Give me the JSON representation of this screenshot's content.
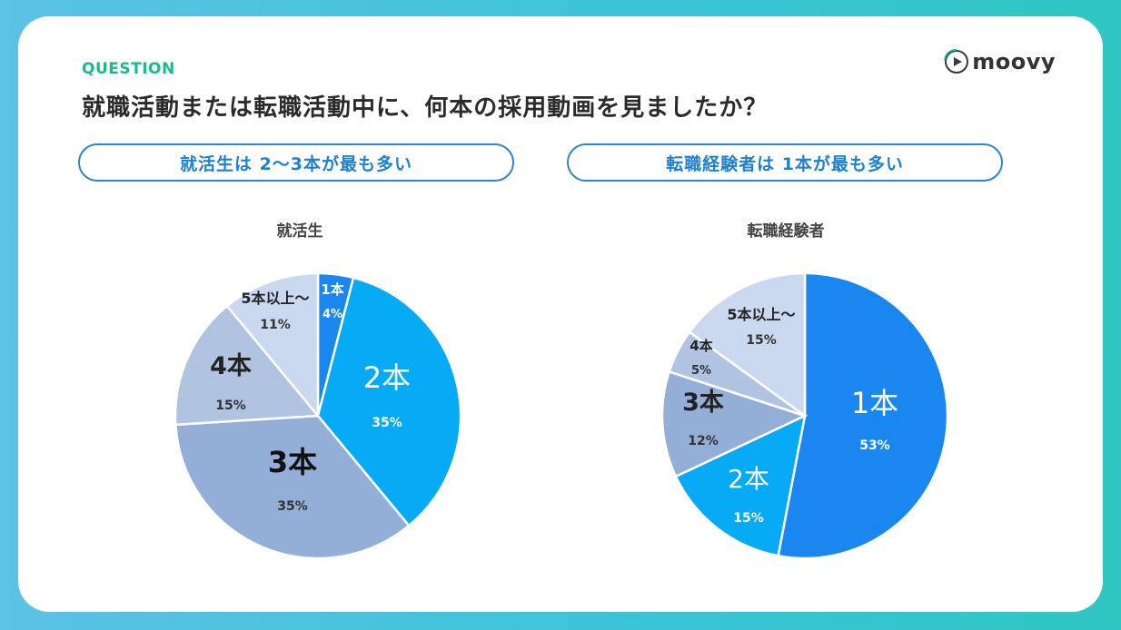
{
  "header": {
    "question_label": "QUESTION",
    "title": "就職活動または転職活動中に、何本の採用動画を見ましたか？",
    "logo_text": "moovy"
  },
  "pills": {
    "left": "就活生は 2〜3本が最も多い",
    "right": "転職経験者は 1本が最も多い"
  },
  "colors": {
    "slice_1": "#1a87f0",
    "slice_2": "#07aaf5",
    "slice_3": "#93afd8",
    "slice_4": "#b0c4e2",
    "slice_5": "#cad9ef",
    "accent_green": "#1bb98e",
    "pill_border": "#2f86c6"
  },
  "chart_data": [
    {
      "type": "pie",
      "title": "就活生",
      "slices": [
        {
          "label": "1本",
          "value": 4,
          "pct_label": "4%"
        },
        {
          "label": "2本",
          "value": 35,
          "pct_label": "35%"
        },
        {
          "label": "3本",
          "value": 35,
          "pct_label": "35%"
        },
        {
          "label": "4本",
          "value": 15,
          "pct_label": "15%"
        },
        {
          "label": "5本以上〜",
          "value": 11,
          "pct_label": "11%"
        }
      ]
    },
    {
      "type": "pie",
      "title": "転職経験者",
      "slices": [
        {
          "label": "1本",
          "value": 53,
          "pct_label": "53%"
        },
        {
          "label": "2本",
          "value": 15,
          "pct_label": "15%"
        },
        {
          "label": "3本",
          "value": 12,
          "pct_label": "12%"
        },
        {
          "label": "4本",
          "value": 5,
          "pct_label": "5%"
        },
        {
          "label": "5本以上〜",
          "value": 15,
          "pct_label": "15%"
        }
      ]
    }
  ]
}
